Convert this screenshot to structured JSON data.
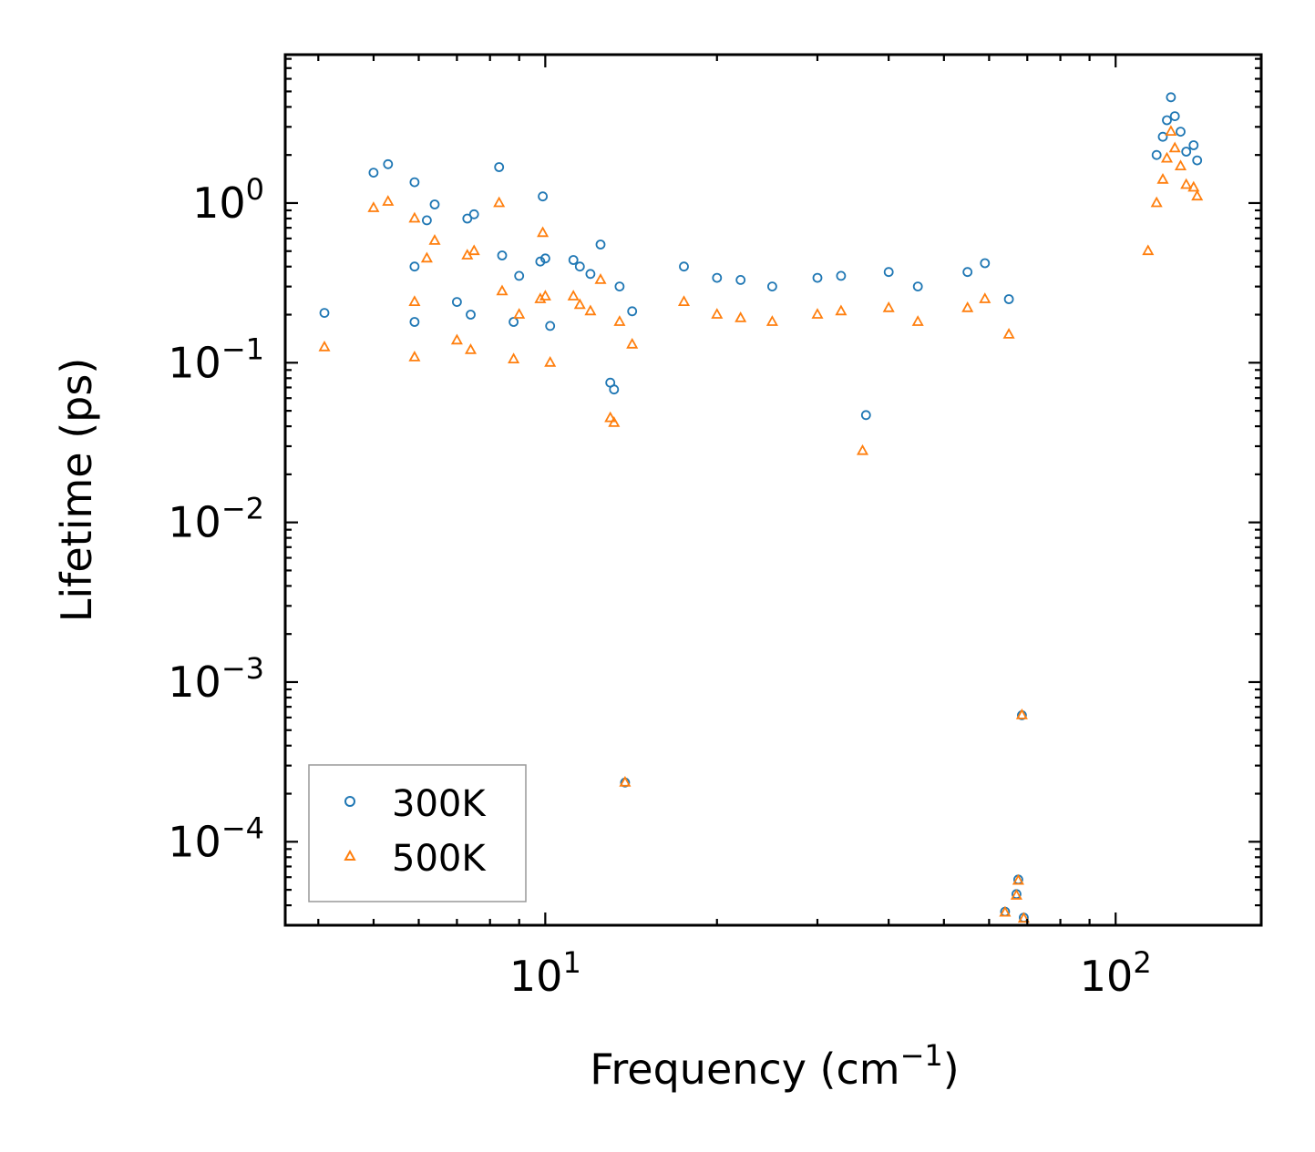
{
  "chart_data": {
    "type": "scatter",
    "title": "",
    "xlabel": "Frequency (cm",
    "xlabel_sup": "−1",
    "xlabel_close": ")",
    "ylabel": "Lifetime (ps)",
    "xscale": "log",
    "yscale": "log",
    "xlim": [
      3.5,
      180
    ],
    "ylim": [
      3e-05,
      8.5
    ],
    "x_ticks": [
      {
        "value": 10,
        "base": "10",
        "exp": "1"
      },
      {
        "value": 100,
        "base": "10",
        "exp": "2"
      }
    ],
    "y_ticks": [
      {
        "value": 1,
        "base": "10",
        "exp": "0"
      },
      {
        "value": 0.1,
        "base": "10",
        "exp": "−1"
      },
      {
        "value": 0.01,
        "base": "10",
        "exp": "−2"
      },
      {
        "value": 0.001,
        "base": "10",
        "exp": "−3"
      },
      {
        "value": 0.0001,
        "base": "10",
        "exp": "−4"
      }
    ],
    "legend_position": "lower-left",
    "colors": {
      "300K": "#1f77b4",
      "500K": "#ff7f0e"
    },
    "series": [
      {
        "name": "300K",
        "marker": "circle",
        "points": [
          [
            4.1,
            0.205
          ],
          [
            5.0,
            1.55
          ],
          [
            5.3,
            1.75
          ],
          [
            5.9,
            1.35
          ],
          [
            5.9,
            0.4
          ],
          [
            5.9,
            0.18
          ],
          [
            6.2,
            0.78
          ],
          [
            6.4,
            0.98
          ],
          [
            7.0,
            0.24
          ],
          [
            7.3,
            0.8
          ],
          [
            7.5,
            0.85
          ],
          [
            7.4,
            0.2
          ],
          [
            8.3,
            1.68
          ],
          [
            8.4,
            0.47
          ],
          [
            8.8,
            0.18
          ],
          [
            9.0,
            0.35
          ],
          [
            9.9,
            1.1
          ],
          [
            9.8,
            0.43
          ],
          [
            10.0,
            0.45
          ],
          [
            10.2,
            0.17
          ],
          [
            11.2,
            0.44
          ],
          [
            11.5,
            0.4
          ],
          [
            12.0,
            0.36
          ],
          [
            12.5,
            0.55
          ],
          [
            13.5,
            0.3
          ],
          [
            13.0,
            0.075
          ],
          [
            13.2,
            0.068
          ],
          [
            13.8,
            0.000235
          ],
          [
            14.2,
            0.21
          ],
          [
            17.5,
            0.4
          ],
          [
            20.0,
            0.34
          ],
          [
            22.0,
            0.33
          ],
          [
            25.0,
            0.3
          ],
          [
            30.0,
            0.34
          ],
          [
            33.0,
            0.35
          ],
          [
            36.5,
            0.047
          ],
          [
            40.0,
            0.37
          ],
          [
            45.0,
            0.3
          ],
          [
            55.0,
            0.37
          ],
          [
            59.0,
            0.42
          ],
          [
            65.0,
            0.25
          ],
          [
            68.5,
            0.00062
          ],
          [
            67.5,
            5.8e-05
          ],
          [
            67.0,
            4.7e-05
          ],
          [
            64.0,
            3.65e-05
          ],
          [
            69.0,
            3.35e-05
          ],
          [
            118.0,
            2.0
          ],
          [
            121.0,
            2.6
          ],
          [
            123.0,
            3.3
          ],
          [
            125.0,
            4.6
          ],
          [
            127.0,
            3.5
          ],
          [
            130.0,
            2.8
          ],
          [
            133.0,
            2.1
          ],
          [
            137.0,
            2.3
          ],
          [
            139.0,
            1.85
          ]
        ]
      },
      {
        "name": "500K",
        "marker": "triangle",
        "points": [
          [
            4.1,
            0.125
          ],
          [
            5.0,
            0.93
          ],
          [
            5.3,
            1.02
          ],
          [
            5.9,
            0.8
          ],
          [
            5.9,
            0.24
          ],
          [
            5.9,
            0.108
          ],
          [
            6.2,
            0.45
          ],
          [
            6.4,
            0.58
          ],
          [
            7.0,
            0.138
          ],
          [
            7.3,
            0.47
          ],
          [
            7.5,
            0.5
          ],
          [
            7.4,
            0.12
          ],
          [
            8.3,
            1.0
          ],
          [
            8.4,
            0.28
          ],
          [
            8.8,
            0.105
          ],
          [
            9.0,
            0.2
          ],
          [
            9.9,
            0.65
          ],
          [
            9.8,
            0.25
          ],
          [
            10.0,
            0.26
          ],
          [
            10.2,
            0.1
          ],
          [
            11.2,
            0.26
          ],
          [
            11.5,
            0.23
          ],
          [
            12.0,
            0.21
          ],
          [
            12.5,
            0.33
          ],
          [
            13.5,
            0.18
          ],
          [
            13.0,
            0.045
          ],
          [
            13.2,
            0.042
          ],
          [
            13.8,
            0.000235
          ],
          [
            14.2,
            0.13
          ],
          [
            17.5,
            0.24
          ],
          [
            20.0,
            0.2
          ],
          [
            22.0,
            0.19
          ],
          [
            25.0,
            0.18
          ],
          [
            30.0,
            0.2
          ],
          [
            33.0,
            0.21
          ],
          [
            36.0,
            0.028
          ],
          [
            40.0,
            0.22
          ],
          [
            45.0,
            0.18
          ],
          [
            55.0,
            0.22
          ],
          [
            59.0,
            0.25
          ],
          [
            65.0,
            0.15
          ],
          [
            68.5,
            0.00062
          ],
          [
            67.5,
            5.7e-05
          ],
          [
            67.0,
            4.6e-05
          ],
          [
            64.0,
            3.6e-05
          ],
          [
            69.0,
            3.3e-05
          ],
          [
            114.0,
            0.5
          ],
          [
            118.0,
            1.0
          ],
          [
            121.0,
            1.4
          ],
          [
            123.0,
            1.9
          ],
          [
            125.0,
            2.8
          ],
          [
            127.0,
            2.2
          ],
          [
            130.0,
            1.7
          ],
          [
            133.0,
            1.3
          ],
          [
            137.0,
            1.25
          ],
          [
            139.0,
            1.1
          ]
        ]
      }
    ]
  }
}
